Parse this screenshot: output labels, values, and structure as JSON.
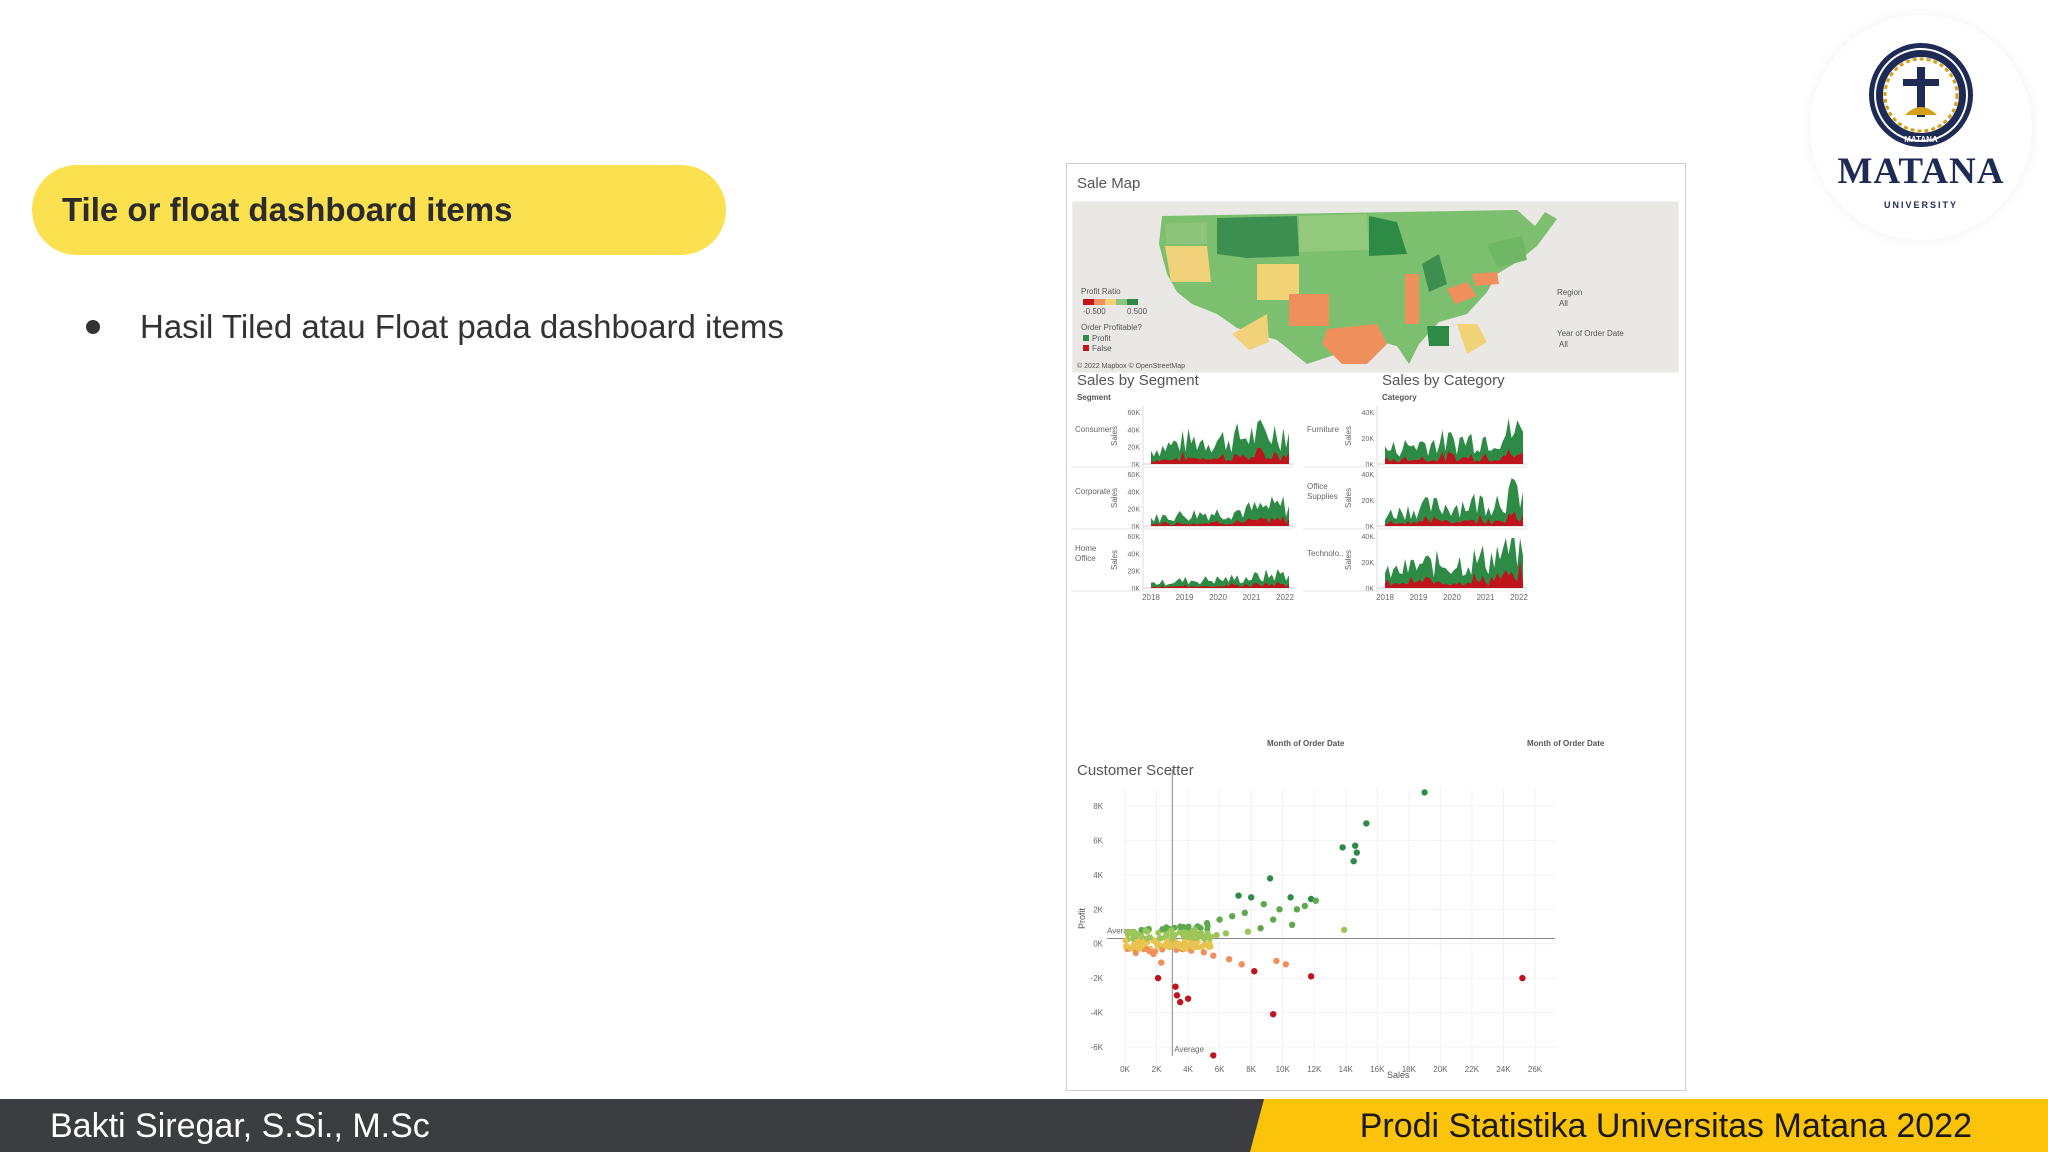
{
  "slide": {
    "title": "Tile or float dashboard items",
    "bullet": "Hasil Tiled atau Float pada dashboard items"
  },
  "logo": {
    "name": "MATANA",
    "sub": "UNIVERSITY",
    "seal_text": "MATANA",
    "icon": "university-seal-icon"
  },
  "footer": {
    "left": "Bakti Siregar, S.Si., M.Sc",
    "right": "Prodi Statistika Universitas Matana 2022"
  },
  "colors": {
    "pill": "#fbe04f",
    "footer_dark": "#3c3d40",
    "footer_gold": "#fcc30b",
    "profit_green": "#2e8b46",
    "loss_red": "#c0141c"
  },
  "dashboard": {
    "map": {
      "title": "Sale Map",
      "legend_title": "Profit Ratio",
      "legend_min": "-0.500",
      "legend_max": "0.500",
      "profitable_title": "Order Profitable?",
      "profit_label": "Profit",
      "false_label": "False",
      "region_label": "Region",
      "region_value": "All",
      "year_label": "Year of Order Date",
      "year_value": "All",
      "copyright": "© 2022 Mapbox © OpenStreetMap"
    },
    "segment": {
      "title": "Sales by Segment",
      "header": "Segment",
      "rows": [
        "Consumer",
        "Corporate",
        "Home Office"
      ],
      "axis_title": "Sales",
      "yticks": [
        "60K",
        "40K",
        "20K",
        "0K"
      ],
      "xticks": [
        "2018",
        "2019",
        "2020",
        "2021",
        "2022"
      ],
      "xlabel": "Month of Order Date"
    },
    "category": {
      "title": "Sales by Category",
      "header": "Category",
      "rows": [
        "Furniture",
        "Office Supplies",
        "Technolo.."
      ],
      "axis_title": "Sales",
      "yticks": [
        "40K",
        "20K",
        "0K"
      ],
      "xticks": [
        "2018",
        "2019",
        "2020",
        "2021",
        "2022"
      ],
      "xlabel": "Month of Order Date"
    },
    "scatter": {
      "title": "Customer Scetter",
      "ylabel": "Profit",
      "xlabel": "Sales",
      "yticks": [
        "8K",
        "6K",
        "4K",
        "2K",
        "0K",
        "-2K",
        "-4K",
        "-6K"
      ],
      "xticks": [
        "0K",
        "2K",
        "4K",
        "6K",
        "8K",
        "10K",
        "12K",
        "14K",
        "16K",
        "18K",
        "20K",
        "22K",
        "24K",
        "26K"
      ],
      "avg_h_label": "Average",
      "avg_v_label": "Average"
    }
  },
  "chart_data": [
    {
      "type": "area",
      "title": "Sales by Segment",
      "x": [
        "2018",
        "2019",
        "2020",
        "2021",
        "2022"
      ],
      "ylabel": "Sales",
      "xlabel": "Month of Order Date",
      "ylim": [
        0,
        60000
      ],
      "series": [
        {
          "name": "Consumer",
          "values": [
            18000,
            30000,
            32000,
            38000,
            44000
          ]
        },
        {
          "name": "Corporate",
          "values": [
            10000,
            15000,
            18000,
            22000,
            28000
          ]
        },
        {
          "name": "Home Office",
          "values": [
            6000,
            10000,
            11000,
            14000,
            20000
          ]
        }
      ]
    },
    {
      "type": "area",
      "title": "Sales by Category",
      "x": [
        "2018",
        "2019",
        "2020",
        "2021",
        "2022"
      ],
      "ylabel": "Sales",
      "xlabel": "Month of Order Date",
      "ylim": [
        0,
        40000
      ],
      "series": [
        {
          "name": "Furniture",
          "values": [
            12000,
            18000,
            20000,
            24000,
            30000
          ]
        },
        {
          "name": "Office Supplies",
          "values": [
            10000,
            16000,
            18000,
            22000,
            30000
          ]
        },
        {
          "name": "Technolo..",
          "values": [
            12000,
            20000,
            22000,
            26000,
            40000
          ]
        }
      ]
    },
    {
      "type": "scatter",
      "title": "Customer Scetter",
      "xlabel": "Sales",
      "ylabel": "Profit",
      "xlim": [
        0,
        26000
      ],
      "ylim": [
        -7000,
        9000
      ],
      "points": [
        [
          19000,
          8800
        ],
        [
          15300,
          7000
        ],
        [
          13800,
          5600
        ],
        [
          14600,
          5700
        ],
        [
          14700,
          5300
        ],
        [
          14500,
          4800
        ],
        [
          9200,
          3800
        ],
        [
          7200,
          2800
        ],
        [
          8000,
          2700
        ],
        [
          10500,
          2700
        ],
        [
          11800,
          2600
        ],
        [
          11400,
          2200
        ],
        [
          10900,
          2000
        ],
        [
          12100,
          2500
        ],
        [
          8800,
          2300
        ],
        [
          9800,
          2000
        ],
        [
          7600,
          1800
        ],
        [
          6800,
          1600
        ],
        [
          6000,
          1400
        ],
        [
          5200,
          1200
        ],
        [
          4600,
          1000
        ],
        [
          4000,
          900
        ],
        [
          3500,
          700
        ],
        [
          3000,
          500
        ],
        [
          2600,
          400
        ],
        [
          2200,
          300
        ],
        [
          1800,
          200
        ],
        [
          1400,
          100
        ],
        [
          1000,
          50
        ],
        [
          600,
          0
        ],
        [
          9400,
          1400
        ],
        [
          10600,
          1100
        ],
        [
          8600,
          900
        ],
        [
          13900,
          800
        ],
        [
          7800,
          700
        ],
        [
          6400,
          600
        ],
        [
          5800,
          500
        ],
        [
          5000,
          400
        ],
        [
          4400,
          300
        ],
        [
          3800,
          200
        ],
        [
          3200,
          100
        ],
        [
          2800,
          -200
        ],
        [
          3600,
          -300
        ],
        [
          4200,
          -400
        ],
        [
          5000,
          -500
        ],
        [
          5600,
          -700
        ],
        [
          6600,
          -900
        ],
        [
          7400,
          -1200
        ],
        [
          8200,
          -1600
        ],
        [
          9600,
          -1000
        ],
        [
          11800,
          -1900
        ],
        [
          10200,
          -1200
        ],
        [
          2300,
          -1100
        ],
        [
          2100,
          -2000
        ],
        [
          3200,
          -2500
        ],
        [
          3300,
          -3000
        ],
        [
          3500,
          -3400
        ],
        [
          4000,
          -3200
        ],
        [
          5600,
          -6500
        ],
        [
          9400,
          -4100
        ],
        [
          25200,
          -2000
        ],
        [
          1800,
          -600
        ]
      ],
      "avg_x": 3000,
      "avg_y": 300
    }
  ]
}
